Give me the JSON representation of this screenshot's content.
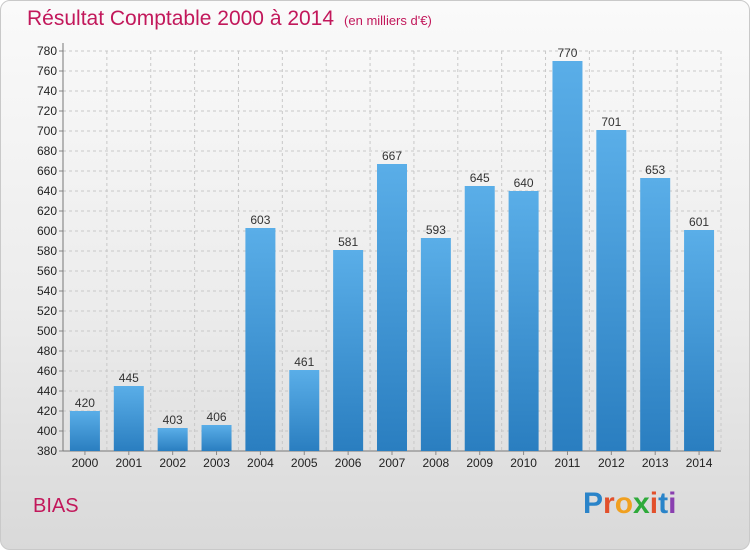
{
  "header": {
    "title": "Résultat Comptable 2000 à 2014",
    "subtitle": "(en milliers d'€)"
  },
  "footer": {
    "commune": "BIAS",
    "logo_letters": [
      "P",
      "r",
      "o",
      "x",
      "i",
      "t",
      "i"
    ],
    "logo_colors": [
      "#2a84c9",
      "#e2502b",
      "#f0a020",
      "#2eaa3a",
      "#e2502b",
      "#2a84c9",
      "#8a3fb0"
    ]
  },
  "chart_data": {
    "type": "bar",
    "categories": [
      "2000",
      "2001",
      "2002",
      "2003",
      "2004",
      "2005",
      "2006",
      "2007",
      "2008",
      "2009",
      "2010",
      "2011",
      "2012",
      "2013",
      "2014"
    ],
    "values": [
      420,
      445,
      403,
      406,
      603,
      461,
      581,
      667,
      593,
      645,
      640,
      770,
      701,
      653,
      601
    ],
    "title": "Résultat Comptable 2000 à 2014",
    "xlabel": "",
    "ylabel": "",
    "ylim": [
      380,
      780
    ],
    "ytick_step": 20,
    "grid": true,
    "bar_color_top": "#5aaee8",
    "bar_color_bottom": "#2a7ec0"
  }
}
